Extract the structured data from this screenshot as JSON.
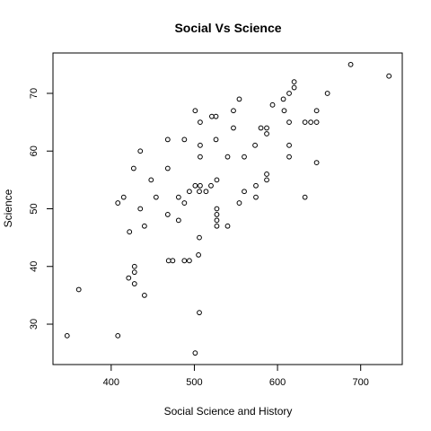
{
  "chart_data": {
    "type": "scatter",
    "title": "Social Vs Science",
    "xlabel": "Social Science and History",
    "ylabel": "Science",
    "xlim": [
      330,
      750
    ],
    "ylim": [
      23,
      77
    ],
    "x_ticks": [
      400,
      500,
      600,
      700
    ],
    "y_ticks": [
      30,
      40,
      50,
      60,
      70
    ],
    "grid": false,
    "points": [
      {
        "x": 347,
        "y": 28
      },
      {
        "x": 361,
        "y": 36
      },
      {
        "x": 408,
        "y": 28
      },
      {
        "x": 408,
        "y": 51
      },
      {
        "x": 415,
        "y": 52
      },
      {
        "x": 421,
        "y": 38
      },
      {
        "x": 422,
        "y": 46
      },
      {
        "x": 427,
        "y": 57
      },
      {
        "x": 428,
        "y": 40
      },
      {
        "x": 428,
        "y": 39
      },
      {
        "x": 428,
        "y": 37
      },
      {
        "x": 435,
        "y": 60
      },
      {
        "x": 435,
        "y": 50
      },
      {
        "x": 440,
        "y": 47
      },
      {
        "x": 440,
        "y": 35
      },
      {
        "x": 448,
        "y": 55
      },
      {
        "x": 454,
        "y": 52
      },
      {
        "x": 468,
        "y": 62
      },
      {
        "x": 468,
        "y": 57
      },
      {
        "x": 468,
        "y": 49
      },
      {
        "x": 469,
        "y": 41
      },
      {
        "x": 474,
        "y": 41
      },
      {
        "x": 481,
        "y": 48
      },
      {
        "x": 481,
        "y": 52
      },
      {
        "x": 488,
        "y": 62
      },
      {
        "x": 488,
        "y": 51
      },
      {
        "x": 488,
        "y": 41
      },
      {
        "x": 494,
        "y": 41
      },
      {
        "x": 494,
        "y": 53
      },
      {
        "x": 501,
        "y": 54
      },
      {
        "x": 501,
        "y": 67
      },
      {
        "x": 501,
        "y": 25
      },
      {
        "x": 505,
        "y": 42
      },
      {
        "x": 506,
        "y": 45
      },
      {
        "x": 506,
        "y": 32
      },
      {
        "x": 506,
        "y": 53
      },
      {
        "x": 507,
        "y": 65
      },
      {
        "x": 507,
        "y": 61
      },
      {
        "x": 507,
        "y": 59
      },
      {
        "x": 507,
        "y": 54
      },
      {
        "x": 514,
        "y": 53
      },
      {
        "x": 520,
        "y": 54
      },
      {
        "x": 521,
        "y": 66
      },
      {
        "x": 526,
        "y": 66
      },
      {
        "x": 526,
        "y": 62
      },
      {
        "x": 527,
        "y": 55
      },
      {
        "x": 527,
        "y": 50
      },
      {
        "x": 527,
        "y": 49
      },
      {
        "x": 527,
        "y": 48
      },
      {
        "x": 527,
        "y": 47
      },
      {
        "x": 540,
        "y": 59
      },
      {
        "x": 540,
        "y": 47
      },
      {
        "x": 547,
        "y": 64
      },
      {
        "x": 547,
        "y": 67
      },
      {
        "x": 554,
        "y": 69
      },
      {
        "x": 554,
        "y": 51
      },
      {
        "x": 560,
        "y": 53
      },
      {
        "x": 560,
        "y": 59
      },
      {
        "x": 573,
        "y": 61
      },
      {
        "x": 574,
        "y": 54
      },
      {
        "x": 574,
        "y": 52
      },
      {
        "x": 580,
        "y": 64
      },
      {
        "x": 587,
        "y": 64
      },
      {
        "x": 587,
        "y": 63
      },
      {
        "x": 587,
        "y": 56
      },
      {
        "x": 587,
        "y": 55
      },
      {
        "x": 594,
        "y": 68
      },
      {
        "x": 607,
        "y": 69
      },
      {
        "x": 608,
        "y": 67
      },
      {
        "x": 614,
        "y": 70
      },
      {
        "x": 614,
        "y": 65
      },
      {
        "x": 614,
        "y": 61
      },
      {
        "x": 614,
        "y": 59
      },
      {
        "x": 620,
        "y": 71
      },
      {
        "x": 620,
        "y": 72
      },
      {
        "x": 633,
        "y": 65
      },
      {
        "x": 633,
        "y": 52
      },
      {
        "x": 640,
        "y": 65
      },
      {
        "x": 647,
        "y": 67
      },
      {
        "x": 647,
        "y": 65
      },
      {
        "x": 647,
        "y": 58
      },
      {
        "x": 660,
        "y": 70
      },
      {
        "x": 688,
        "y": 75
      },
      {
        "x": 734,
        "y": 73
      }
    ]
  }
}
